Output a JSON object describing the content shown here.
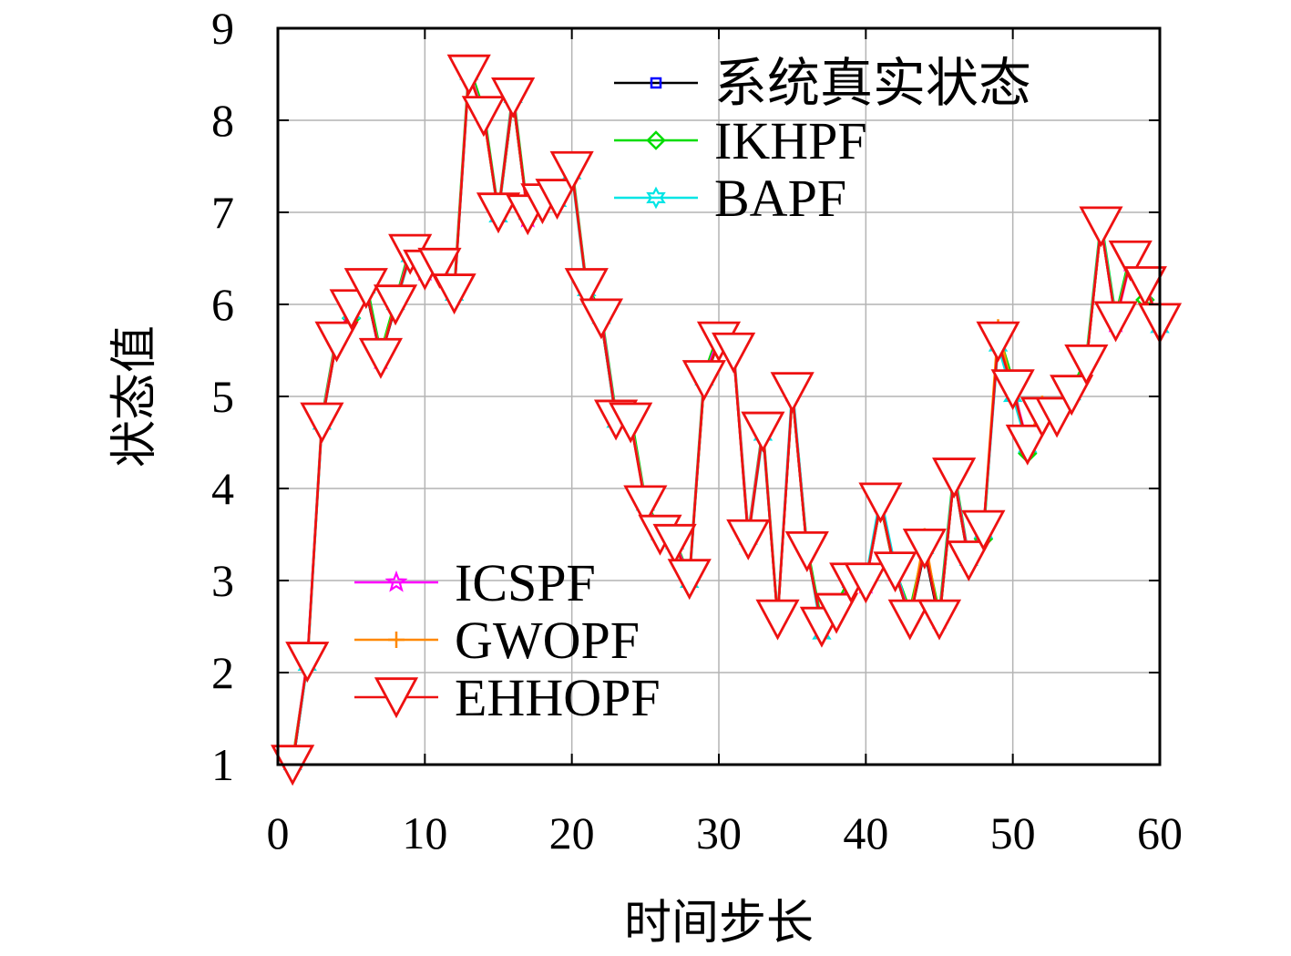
{
  "chart_data": {
    "type": "line",
    "xlabel": "时间步长",
    "ylabel": "状态值",
    "xlim": [
      0,
      60
    ],
    "ylim": [
      1,
      9
    ],
    "xticks": [
      0,
      10,
      20,
      30,
      40,
      50,
      60
    ],
    "yticks": [
      1,
      2,
      3,
      4,
      5,
      6,
      7,
      8,
      9
    ],
    "grid": true,
    "legend_top": "top-right",
    "legend_bottom": "lower-left",
    "x": [
      1,
      2,
      3,
      4,
      5,
      6,
      7,
      8,
      9,
      10,
      11,
      12,
      13,
      14,
      15,
      16,
      17,
      18,
      19,
      20,
      21,
      22,
      23,
      24,
      25,
      26,
      27,
      28,
      29,
      30,
      31,
      32,
      33,
      34,
      35,
      36,
      37,
      38,
      39,
      40,
      41,
      42,
      43,
      44,
      45,
      46,
      47,
      48,
      49,
      50,
      51,
      52,
      53,
      54,
      55,
      56,
      57,
      58,
      59,
      60
    ],
    "series": [
      {
        "name": "系统真实状态",
        "color": "#0000ff",
        "line_color": "#000000",
        "marker": "square",
        "values": [
          0.98,
          2.1,
          4.72,
          5.6,
          5.92,
          6.15,
          5.42,
          5.98,
          6.55,
          6.38,
          6.42,
          6.12,
          8.52,
          8.05,
          6.98,
          8.22,
          6.96,
          7.12,
          7.15,
          7.45,
          6.18,
          5.82,
          4.75,
          4.72,
          3.85,
          3.48,
          3.38,
          3.02,
          5.15,
          5.6,
          5.48,
          3.48,
          4.62,
          2.58,
          5.02,
          3.32,
          2.48,
          2.65,
          2.95,
          2.98,
          3.82,
          3.08,
          2.58,
          3.32,
          2.55,
          4.12,
          3.2,
          3.55,
          5.58,
          5.05,
          4.48,
          4.78,
          4.78,
          5.0,
          5.35,
          6.85,
          5.82,
          6.48,
          6.2,
          5.78
        ]
      },
      {
        "name": "IKHPF",
        "color": "#00dd00",
        "marker": "diamond",
        "values": [
          1.05,
          2.12,
          4.78,
          5.68,
          5.85,
          6.25,
          5.48,
          6.05,
          6.62,
          6.42,
          6.48,
          6.18,
          8.6,
          8.12,
          7.02,
          8.32,
          7.0,
          7.18,
          7.22,
          7.52,
          6.22,
          5.92,
          4.82,
          4.82,
          3.88,
          3.55,
          3.45,
          3.05,
          5.25,
          5.7,
          5.55,
          3.52,
          4.68,
          2.62,
          5.08,
          3.38,
          2.55,
          2.75,
          3.05,
          3.0,
          3.88,
          3.12,
          2.68,
          3.4,
          2.65,
          4.22,
          3.25,
          3.45,
          5.7,
          5.18,
          4.38,
          4.88,
          4.88,
          5.08,
          5.42,
          6.92,
          5.88,
          6.55,
          6.05,
          5.85
        ]
      },
      {
        "name": "BAPF",
        "color": "#00e5e5",
        "marker": "hexagram",
        "values": [
          1.0,
          2.08,
          4.7,
          5.62,
          5.9,
          6.18,
          5.45,
          6.0,
          6.52,
          6.4,
          6.4,
          6.1,
          8.5,
          8.08,
          6.95,
          8.25,
          6.98,
          7.15,
          7.12,
          7.42,
          6.15,
          5.85,
          4.72,
          4.75,
          3.82,
          3.5,
          3.4,
          2.98,
          5.18,
          5.62,
          5.5,
          3.45,
          4.58,
          2.6,
          5.12,
          3.35,
          2.42,
          2.7,
          2.98,
          3.02,
          3.92,
          3.15,
          2.6,
          3.35,
          2.6,
          4.18,
          3.22,
          3.52,
          5.55,
          5.0,
          4.45,
          4.8,
          4.82,
          5.02,
          5.38,
          6.88,
          5.85,
          6.5,
          6.25,
          5.75
        ]
      },
      {
        "name": "ICSPF",
        "color": "#ff00ff",
        "marker": "pentagram",
        "values": [
          1.02,
          2.14,
          4.75,
          5.65,
          5.95,
          6.2,
          5.4,
          6.02,
          6.58,
          6.36,
          6.44,
          6.14,
          8.55,
          8.06,
          7.0,
          8.28,
          6.94,
          7.14,
          7.18,
          7.48,
          6.2,
          5.88,
          4.78,
          4.74,
          3.86,
          3.52,
          3.42,
          3.04,
          5.2,
          5.65,
          5.52,
          3.5,
          4.65,
          2.6,
          5.05,
          3.34,
          2.5,
          2.68,
          3.0,
          2.96,
          3.85,
          3.1,
          2.62,
          3.38,
          2.58,
          4.15,
          3.24,
          3.56,
          5.62,
          5.1,
          4.5,
          4.82,
          4.8,
          5.04,
          5.36,
          6.86,
          5.8,
          6.46,
          6.22,
          5.8
        ]
      },
      {
        "name": "GWOPF",
        "color": "#ff8800",
        "marker": "plus",
        "values": [
          1.03,
          2.11,
          4.73,
          5.63,
          5.93,
          6.17,
          5.44,
          6.01,
          6.56,
          6.39,
          6.43,
          6.13,
          8.53,
          8.04,
          6.99,
          8.23,
          6.97,
          7.13,
          7.16,
          7.46,
          6.19,
          5.84,
          4.76,
          4.73,
          3.84,
          3.49,
          3.39,
          3.03,
          5.16,
          5.61,
          5.49,
          3.47,
          4.63,
          2.59,
          5.03,
          3.33,
          2.49,
          2.66,
          2.97,
          2.99,
          3.83,
          3.09,
          2.59,
          3.48,
          2.56,
          4.13,
          3.21,
          3.54,
          5.75,
          5.06,
          4.49,
          4.92,
          4.79,
          5.01,
          5.36,
          6.84,
          5.83,
          6.49,
          6.21,
          5.79
        ]
      },
      {
        "name": "EHHOPF",
        "color": "#ee1111",
        "marker": "triangle-down",
        "values": [
          1.0,
          2.12,
          4.72,
          5.6,
          5.95,
          6.18,
          5.42,
          6.0,
          6.55,
          6.38,
          6.4,
          6.12,
          8.5,
          8.05,
          7.0,
          8.25,
          6.98,
          7.1,
          7.15,
          7.45,
          6.18,
          5.85,
          4.75,
          4.72,
          3.82,
          3.5,
          3.4,
          3.02,
          5.18,
          5.6,
          5.48,
          3.45,
          4.62,
          2.58,
          5.05,
          3.32,
          2.5,
          2.65,
          2.98,
          2.98,
          3.85,
          3.1,
          2.58,
          3.35,
          2.58,
          4.12,
          3.22,
          3.55,
          5.6,
          5.08,
          4.48,
          4.78,
          4.78,
          5.02,
          5.35,
          6.85,
          5.82,
          6.48,
          6.2,
          5.8
        ]
      }
    ]
  }
}
